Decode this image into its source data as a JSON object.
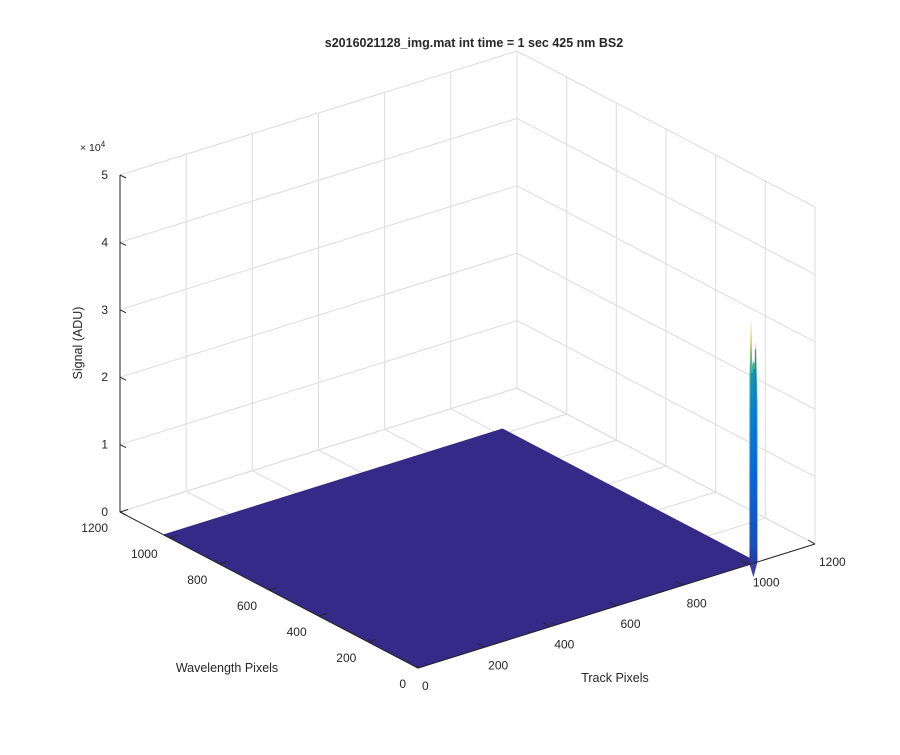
{
  "chart_data": {
    "type": "surface",
    "title": "s2016021128_img.mat int time = 1 sec  425 nm BS2",
    "xlabel": "Track Pixels",
    "ylabel": "Wavelength Pixels",
    "zlabel": "Signal (ADU)",
    "z_exponent_label": "× 10",
    "z_exponent_power": "4",
    "xlim": [
      0,
      1200
    ],
    "ylim": [
      0,
      1200
    ],
    "zlim": [
      0,
      50000
    ],
    "x_ticks": [
      0,
      200,
      400,
      600,
      800,
      1000,
      1200
    ],
    "x_tick_labels": [
      "0",
      "200",
      "400",
      "600",
      "800",
      "1000",
      "1200"
    ],
    "y_ticks": [
      0,
      200,
      400,
      600,
      800,
      1000,
      1200
    ],
    "y_tick_labels": [
      "0",
      "200",
      "400",
      "600",
      "800",
      "1000",
      "1200"
    ],
    "z_ticks": [
      0,
      10000,
      20000,
      30000,
      40000,
      50000
    ],
    "z_tick_labels": [
      "0",
      "1",
      "2",
      "3",
      "4",
      "5"
    ],
    "grid": true,
    "surface_extent": {
      "x": [
        0,
        1024
      ],
      "y": [
        0,
        1024
      ]
    },
    "baseline_signal": 0,
    "peak": {
      "x_center": 1014,
      "x_halfwidth": 12,
      "y_from": 0,
      "y_to": 24,
      "profile": [
        {
          "frac": 0.0,
          "z": 28000
        },
        {
          "frac": 0.2,
          "z": 36500
        },
        {
          "frac": 0.35,
          "z": 29500
        },
        {
          "frac": 0.5,
          "z": 30000
        },
        {
          "frac": 0.65,
          "z": 29500
        },
        {
          "frac": 0.8,
          "z": 33000
        },
        {
          "frac": 1.0,
          "z": 24000
        }
      ]
    },
    "colors": {
      "surface_low": "#352a87",
      "surface_mid": "#0f5cdd",
      "surface_midhigh": "#1398d3",
      "surface_high": "#e8c93c"
    }
  }
}
